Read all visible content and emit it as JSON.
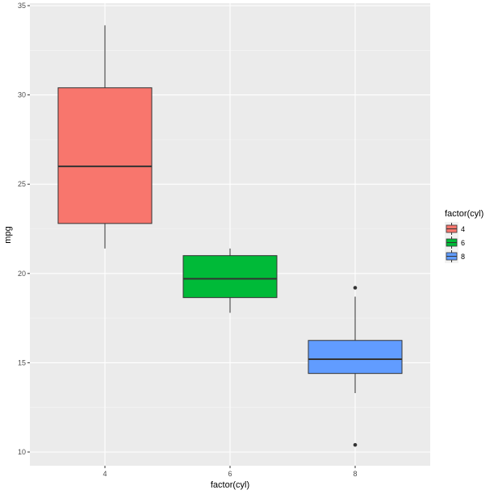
{
  "chart_data": {
    "type": "boxplot",
    "title": "",
    "xlabel": "factor(cyl)",
    "ylabel": "mpg",
    "ylim": [
      9.3,
      35.2
    ],
    "yticks": [
      10,
      15,
      20,
      25,
      30,
      35
    ],
    "categories": [
      "4",
      "6",
      "8"
    ],
    "grid": true,
    "legend": {
      "title": "factor(cyl)",
      "position": "right",
      "entries": [
        {
          "label": "4",
          "color": "#F8766D"
        },
        {
          "label": "6",
          "color": "#00BA38"
        },
        {
          "label": "8",
          "color": "#619CFF"
        }
      ]
    },
    "series": [
      {
        "name": "4",
        "color": "#F8766D",
        "whisker_low": 21.4,
        "q1": 22.8,
        "median": 26.0,
        "q3": 30.4,
        "whisker_high": 33.9,
        "outliers": []
      },
      {
        "name": "6",
        "color": "#00BA38",
        "whisker_low": 17.8,
        "q1": 18.65,
        "median": 19.7,
        "q3": 21.0,
        "whisker_high": 21.4,
        "outliers": []
      },
      {
        "name": "8",
        "color": "#619CFF",
        "whisker_low": 13.3,
        "q1": 14.4,
        "median": 15.2,
        "q3": 16.25,
        "whisker_high": 18.7,
        "outliers": [
          19.2,
          10.4
        ]
      }
    ]
  }
}
